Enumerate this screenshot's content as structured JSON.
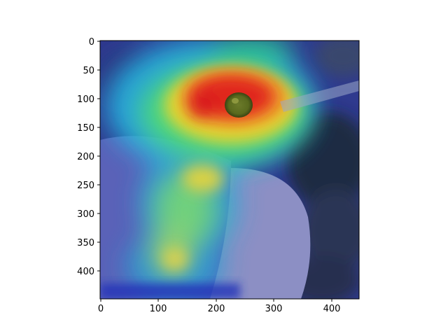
{
  "figure": {
    "image": {
      "description_icon": "bird-gradcam-heatmap-image",
      "colormap": "jet",
      "overlay": true
    },
    "axes": {
      "x_ticks": [
        {
          "value": 0,
          "label": "0"
        },
        {
          "value": 100,
          "label": "100"
        },
        {
          "value": 200,
          "label": "200"
        },
        {
          "value": 300,
          "label": "300"
        },
        {
          "value": 400,
          "label": "400"
        }
      ],
      "y_ticks": [
        {
          "value": 0,
          "label": "0"
        },
        {
          "value": 50,
          "label": "50"
        },
        {
          "value": 100,
          "label": "100"
        },
        {
          "value": 150,
          "label": "150"
        },
        {
          "value": 200,
          "label": "200"
        },
        {
          "value": 250,
          "label": "250"
        },
        {
          "value": 300,
          "label": "300"
        },
        {
          "value": 350,
          "label": "350"
        },
        {
          "value": 400,
          "label": "400"
        }
      ],
      "xlim": [
        0,
        448
      ],
      "ylim": [
        448,
        0
      ]
    },
    "colors": {
      "heat_hot": "#e0201e",
      "heat_warm": "#f2c21a",
      "heat_mid": "#3fe07a",
      "heat_cool": "#27b9e6",
      "heat_cold": "#2a3dc9"
    }
  }
}
